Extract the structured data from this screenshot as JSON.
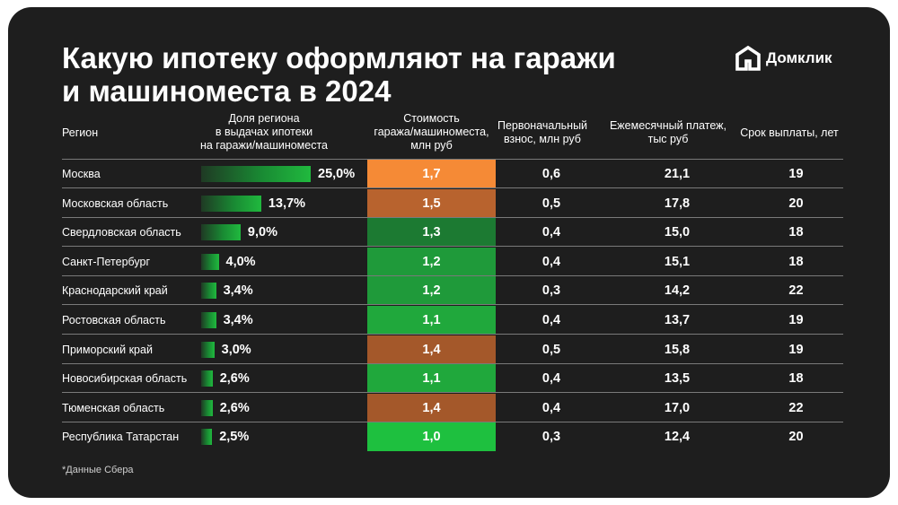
{
  "title_line1": "Какую ипотеку оформляют на гаражи",
  "title_line2": "и машиноместа в 2024",
  "brand": {
    "name": "Домклик",
    "icon": "domclick-house-icon"
  },
  "headers": {
    "region": "Регион",
    "share": [
      "Доля региона",
      "в выдачах ипотеки",
      "на гаражи/машиноместа"
    ],
    "cost": [
      "Стоимость",
      "гаража/машиноместа,",
      "млн руб"
    ],
    "down_payment": [
      "Первоначальный",
      "взнос, млн руб"
    ],
    "monthly": [
      "Ежемесячный платеж,",
      "тыс руб"
    ],
    "term": [
      "Срок выплаты, лет"
    ]
  },
  "colors": {
    "background": "#1e1e1e",
    "cost_high": "#f58a36",
    "cost_mid_high": "#b8632e",
    "cost_mid": "#a4582a",
    "cost_low": "#1c7a32",
    "cost_lower": "#1f9a3a",
    "cost_lowest": "#1ec03f",
    "bar": "#20b93e"
  },
  "chart_data": {
    "type": "table",
    "columns": [
      "Регион",
      "Доля региона в выдачах ипотеки на гаражи/машиноместа",
      "Стоимость гаража/машиноместа, млн руб",
      "Первоначальный взнос, млн руб",
      "Ежемесячный платеж, тыс руб",
      "Срок выплаты, лет"
    ],
    "rows": [
      {
        "region": "Москва",
        "share": 25.0,
        "share_label": "25,0%",
        "cost": "1,7",
        "cost_color": "#f58a36",
        "down": "0,6",
        "monthly": "21,1",
        "term": "19"
      },
      {
        "region": "Московская область",
        "share": 13.7,
        "share_label": "13,7%",
        "cost": "1,5",
        "cost_color": "#b8632e",
        "down": "0,5",
        "monthly": "17,8",
        "term": "20"
      },
      {
        "region": "Свердловская область",
        "share": 9.0,
        "share_label": "9,0%",
        "cost": "1,3",
        "cost_color": "#1c7a32",
        "down": "0,4",
        "monthly": "15,0",
        "term": "18"
      },
      {
        "region": "Санкт-Петербург",
        "share": 4.0,
        "share_label": "4,0%",
        "cost": "1,2",
        "cost_color": "#1f9a3a",
        "down": "0,4",
        "monthly": "15,1",
        "term": "18"
      },
      {
        "region": "Краснодарский край",
        "share": 3.4,
        "share_label": "3,4%",
        "cost": "1,2",
        "cost_color": "#1f9a3a",
        "down": "0,3",
        "monthly": "14,2",
        "term": "22"
      },
      {
        "region": "Ростовская область",
        "share": 3.4,
        "share_label": "3,4%",
        "cost": "1,1",
        "cost_color": "#20a83c",
        "down": "0,4",
        "monthly": "13,7",
        "term": "19"
      },
      {
        "region": "Приморский край",
        "share": 3.0,
        "share_label": "3,0%",
        "cost": "1,4",
        "cost_color": "#a4582a",
        "down": "0,5",
        "monthly": "15,8",
        "term": "19"
      },
      {
        "region": "Новосибирская область",
        "share": 2.6,
        "share_label": "2,6%",
        "cost": "1,1",
        "cost_color": "#20a83c",
        "down": "0,4",
        "monthly": "13,5",
        "term": "18"
      },
      {
        "region": "Тюменская область",
        "share": 2.6,
        "share_label": "2,6%",
        "cost": "1,4",
        "cost_color": "#a4582a",
        "down": "0,4",
        "monthly": "17,0",
        "term": "22"
      },
      {
        "region": "Республика Татарстан",
        "share": 2.5,
        "share_label": "2,5%",
        "cost": "1,0",
        "cost_color": "#1ec03f",
        "down": "0,3",
        "monthly": "12,4",
        "term": "20"
      }
    ]
  },
  "footnote": "*Данные Сбера"
}
